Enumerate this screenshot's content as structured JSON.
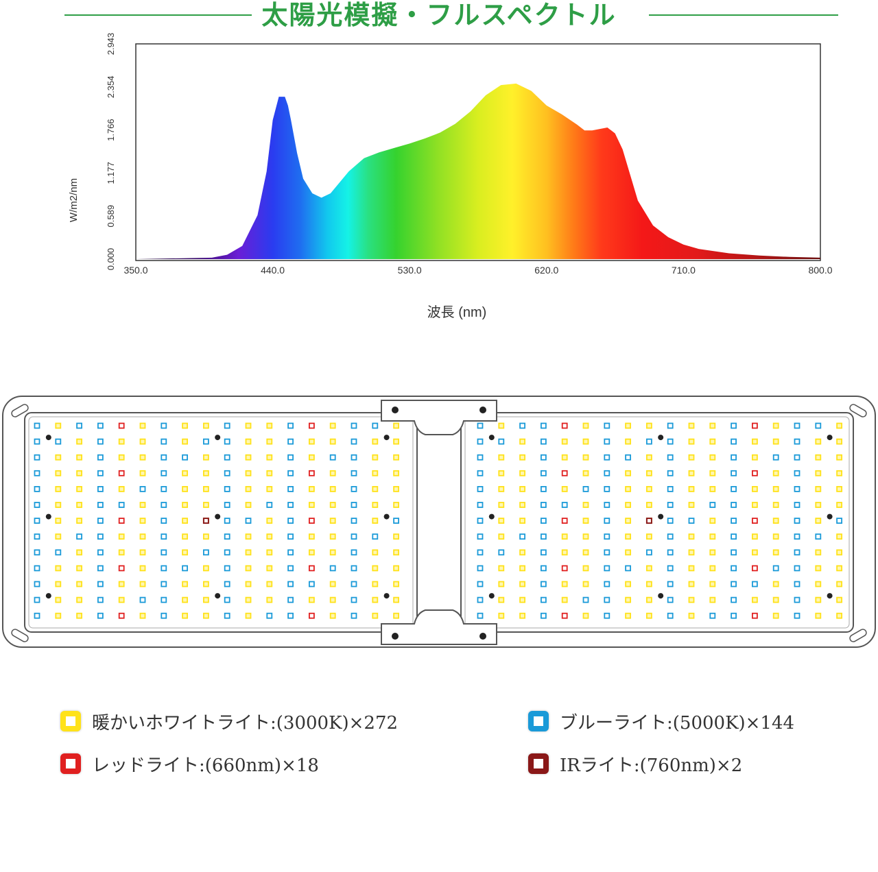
{
  "header": {
    "title": "太陽光模擬・フルスペクトル"
  },
  "chart_data": {
    "type": "area",
    "title": "太陽光模擬・フルスペクトル",
    "xlabel": "波長 (nm)",
    "ylabel": "W/m2/nm",
    "xlim": [
      350,
      800
    ],
    "ylim": [
      0,
      2.943
    ],
    "xticks": [
      "350.0",
      "440.0",
      "530.0",
      "620.0",
      "710.0",
      "800.0"
    ],
    "yticks": [
      "0.000",
      "0.589",
      "1.177",
      "1.766",
      "2.354",
      "2.943"
    ],
    "grid": false,
    "series": [
      {
        "x": [
          350,
          400,
          410,
          420,
          430,
          436,
          440,
          444,
          448,
          450,
          452,
          456,
          460,
          466,
          472,
          478,
          484,
          490,
          500,
          510,
          520,
          530,
          540,
          550,
          560,
          570,
          580,
          590,
          600,
          610,
          615,
          620,
          630,
          640,
          645,
          650,
          660,
          665,
          670,
          675,
          680,
          690,
          700,
          710,
          720,
          740,
          760,
          780,
          800
        ],
        "values": [
          0,
          0.02,
          0.06,
          0.18,
          0.6,
          1.2,
          1.9,
          2.22,
          2.22,
          2.1,
          1.9,
          1.45,
          1.1,
          0.9,
          0.84,
          0.9,
          1.05,
          1.2,
          1.38,
          1.46,
          1.52,
          1.58,
          1.65,
          1.73,
          1.85,
          2.02,
          2.24,
          2.38,
          2.4,
          2.3,
          2.2,
          2.1,
          1.98,
          1.84,
          1.76,
          1.76,
          1.8,
          1.72,
          1.5,
          1.15,
          0.8,
          0.46,
          0.3,
          0.2,
          0.14,
          0.08,
          0.05,
          0.03,
          0.02
        ]
      }
    ]
  },
  "panel": {
    "name": "LED grow light panel",
    "colors": {
      "warm_white": "#ffe21a",
      "blue": "#1a9ad8",
      "red": "#e02020",
      "ir": "#8a1818"
    },
    "counts": {
      "warm_white": 272,
      "blue": 144,
      "red": 18,
      "ir": 2
    }
  },
  "legend": {
    "items": [
      {
        "label": "暖かいホワイトライト:(3000K)×272",
        "color": "#ffe21a"
      },
      {
        "label": "ブルーライト:(5000K)×144",
        "color": "#1a9ad8"
      },
      {
        "label": "レッドライト:(660nm)×18",
        "color": "#e02020"
      },
      {
        "label": "IRライト:(760nm)×2",
        "color": "#8a1818"
      }
    ]
  }
}
